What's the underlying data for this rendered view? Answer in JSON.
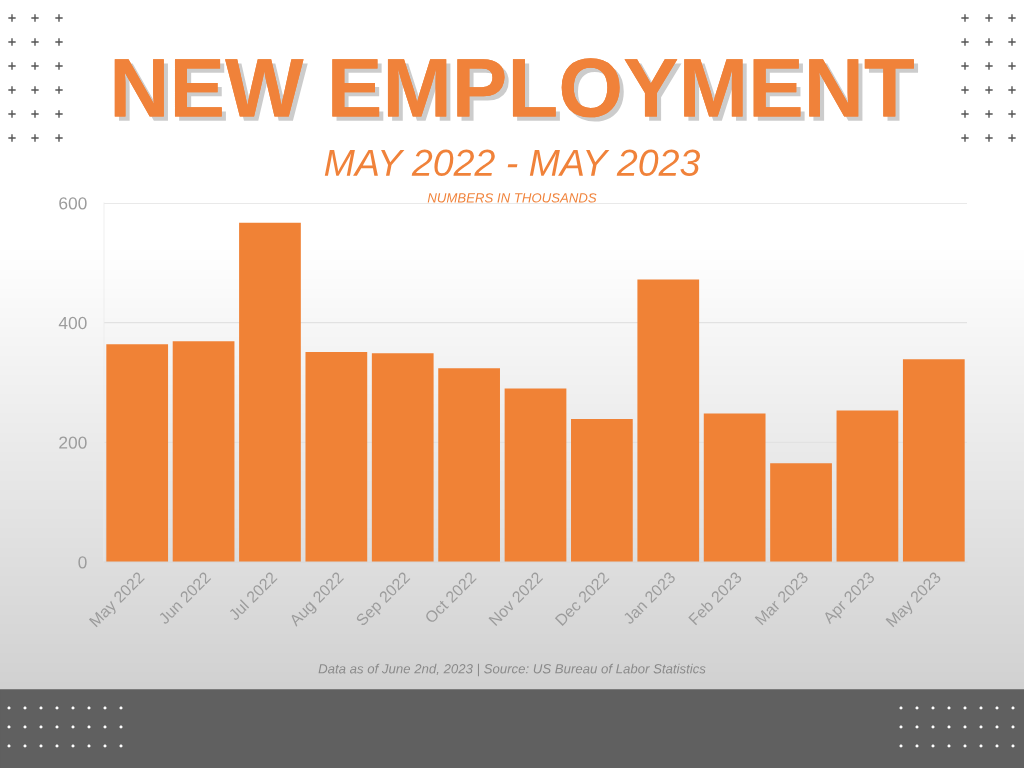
{
  "chart_data": {
    "type": "bar",
    "title": "NEW EMPLOYMENT",
    "subtitle": "MAY 2022 - MAY 2023",
    "annotations": [
      "NUMBERS IN THOUSANDS",
      "Data as of June 2nd, 2023 | Source: US Bureau of Labor Statistics"
    ],
    "categories": [
      "May 2022",
      "Jun 2022",
      "Jul 2022",
      "Aug 2022",
      "Sep 2022",
      "Oct 2022",
      "Nov 2022",
      "Dec 2022",
      "Jan 2023",
      "Feb 2023",
      "Mar 2023",
      "Apr 2023",
      "May 2023"
    ],
    "values": [
      364,
      369,
      567,
      351,
      349,
      324,
      290,
      239,
      472,
      248,
      165,
      253,
      339
    ],
    "color": "#f08236",
    "ylim": [
      0,
      600
    ],
    "yticks": [
      0,
      200,
      400,
      600
    ],
    "grid": "y"
  }
}
